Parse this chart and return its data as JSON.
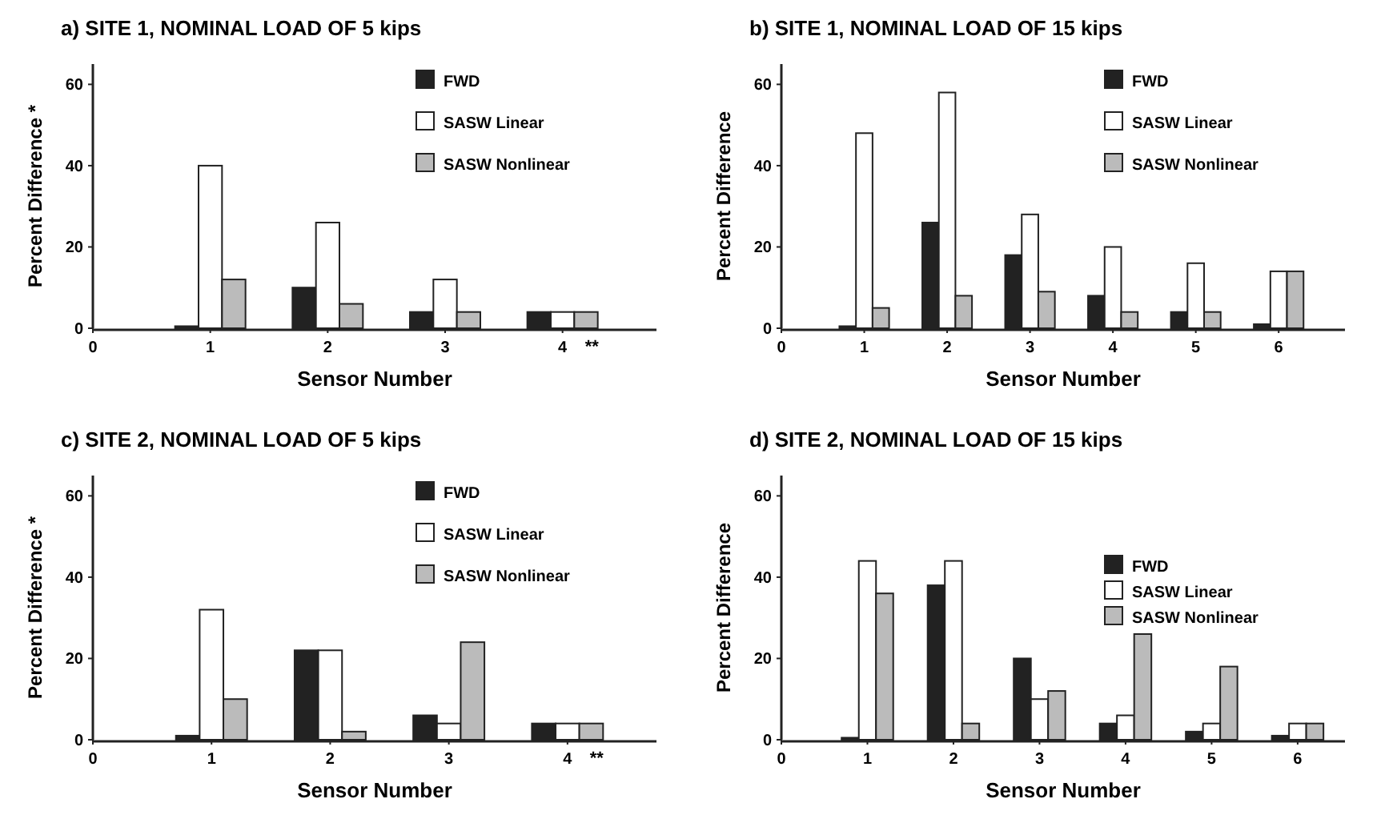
{
  "chart_data": [
    {
      "type": "bar",
      "title": "a) SITE 1, NOMINAL LOAD OF 5 kips",
      "xlabel": "Sensor Number",
      "ylabel": "Percent Difference *",
      "x": [
        1,
        2,
        3,
        4
      ],
      "xlim": [
        0,
        4.8
      ],
      "xticks": [
        0,
        1,
        2,
        3,
        4
      ],
      "ylim": [
        0,
        65
      ],
      "yticks": [
        0,
        20,
        40,
        60
      ],
      "grid": false,
      "legend": "top right",
      "annotations": [
        {
          "text": "**",
          "x": 4,
          "y": 0
        }
      ],
      "series": [
        {
          "name": "FWD",
          "color": "#222222",
          "values": [
            0.5,
            10,
            4,
            4
          ]
        },
        {
          "name": "SASW Linear",
          "color": "#ffffff",
          "values": [
            40,
            26,
            12,
            4
          ]
        },
        {
          "name": "SASW Nonlinear",
          "color": "#bbbbbb",
          "values": [
            12,
            6,
            4,
            4
          ]
        }
      ]
    },
    {
      "type": "bar",
      "title": "b) SITE 1, NOMINAL LOAD OF 15 kips",
      "xlabel": "Sensor Number",
      "ylabel": "Percent Difference",
      "x": [
        1,
        2,
        3,
        4,
        5,
        6
      ],
      "xlim": [
        0,
        6.8
      ],
      "xticks": [
        0,
        1,
        2,
        3,
        4,
        5,
        6
      ],
      "ylim": [
        0,
        65
      ],
      "yticks": [
        0,
        20,
        40,
        60
      ],
      "grid": false,
      "legend": "top right",
      "series": [
        {
          "name": "FWD",
          "color": "#222222",
          "values": [
            0.5,
            26,
            18,
            8,
            4,
            1
          ]
        },
        {
          "name": "SASW Linear",
          "color": "#ffffff",
          "values": [
            48,
            58,
            28,
            20,
            16,
            14
          ]
        },
        {
          "name": "SASW Nonlinear",
          "color": "#bbbbbb",
          "values": [
            5,
            8,
            9,
            4,
            4,
            14
          ]
        }
      ]
    },
    {
      "type": "bar",
      "title": "c) SITE 2, NOMINAL LOAD OF 5 kips",
      "xlabel": "Sensor Number",
      "ylabel": "Percent Difference *",
      "x": [
        1,
        2,
        3,
        4
      ],
      "xlim": [
        0,
        4.75
      ],
      "xticks": [
        0,
        1,
        2,
        3,
        4
      ],
      "ylim": [
        0,
        65
      ],
      "yticks": [
        0,
        20,
        40,
        60
      ],
      "grid": false,
      "legend": "top right",
      "annotations": [
        {
          "text": "**",
          "x": 4,
          "y": 0
        }
      ],
      "series": [
        {
          "name": "FWD",
          "color": "#222222",
          "values": [
            1,
            22,
            6,
            4
          ]
        },
        {
          "name": "SASW Linear",
          "color": "#ffffff",
          "values": [
            32,
            22,
            4,
            4
          ]
        },
        {
          "name": "SASW Nonlinear",
          "color": "#bbbbbb",
          "values": [
            10,
            2,
            24,
            4
          ]
        }
      ]
    },
    {
      "type": "bar",
      "title": "d) SITE 2, NOMINAL LOAD OF 15 kips",
      "xlabel": "Sensor Number",
      "ylabel": "Percent Difference",
      "x": [
        1,
        2,
        3,
        4,
        5,
        6
      ],
      "xlim": [
        0,
        6.55
      ],
      "xticks": [
        0,
        1,
        2,
        3,
        4,
        5,
        6
      ],
      "ylim": [
        0,
        65
      ],
      "yticks": [
        0,
        20,
        40,
        60
      ],
      "grid": false,
      "legend": "right",
      "series": [
        {
          "name": "FWD",
          "color": "#222222",
          "values": [
            0.5,
            38,
            20,
            4,
            2,
            1
          ]
        },
        {
          "name": "SASW Linear",
          "color": "#ffffff",
          "values": [
            44,
            44,
            10,
            6,
            4,
            4
          ]
        },
        {
          "name": "SASW Nonlinear",
          "color": "#bbbbbb",
          "values": [
            36,
            4,
            12,
            26,
            18,
            4
          ]
        }
      ]
    }
  ]
}
